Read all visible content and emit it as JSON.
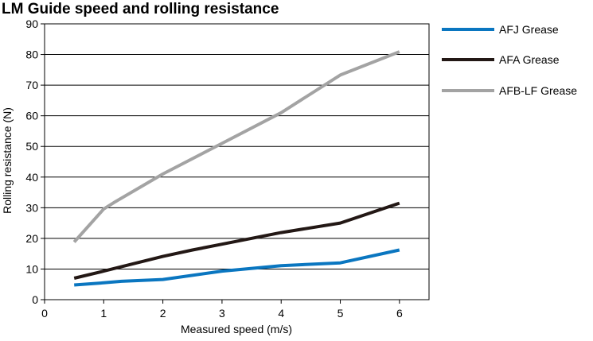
{
  "chart_data": {
    "type": "line",
    "title": "LM Guide speed and rolling resistance",
    "xlabel": "Measured speed (m/s)",
    "ylabel": "Rolling resistance (N)",
    "xlim": [
      0,
      6.5
    ],
    "ylim": [
      0,
      90
    ],
    "xticks": [
      "0",
      "1",
      "2",
      "3",
      "4",
      "5",
      "6"
    ],
    "yticks": [
      "0",
      "10",
      "20",
      "30",
      "40",
      "50",
      "60",
      "70",
      "80",
      "90"
    ],
    "grid": "horizontal",
    "legend_position": "right",
    "series": [
      {
        "name": "AFJ Grease",
        "color": "#0a76c0",
        "x": [
          0.5,
          1.0,
          1.3,
          2.0,
          3.0,
          4.0,
          5.0,
          6.0
        ],
        "y": [
          4.8,
          5.5,
          6.0,
          6.6,
          9.3,
          11.1,
          12.0,
          16.2
        ]
      },
      {
        "name": "AFA Grease",
        "color": "#231815",
        "x": [
          0.5,
          1.0,
          2.0,
          2.5,
          3.0,
          4.0,
          5.0,
          6.0
        ],
        "y": [
          7.0,
          9.3,
          14.1,
          16.2,
          18.1,
          21.9,
          25.0,
          31.5
        ]
      },
      {
        "name": "AFB-LF Grease",
        "color": "#a3a3a3",
        "x": [
          0.5,
          1.0,
          1.2,
          2.0,
          3.0,
          4.0,
          5.0,
          6.0
        ],
        "y": [
          18.8,
          29.6,
          32.0,
          41.0,
          51.0,
          61.0,
          73.3,
          80.9
        ]
      }
    ]
  }
}
